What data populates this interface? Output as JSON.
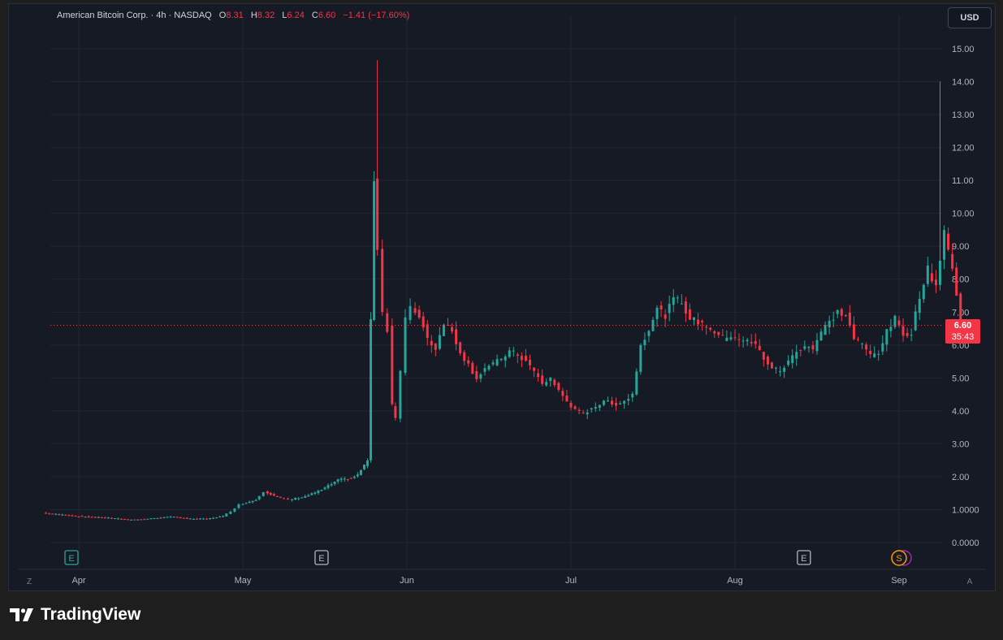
{
  "legend": {
    "symbol": "American Bitcoin Corp. · 4h · NASDAQ",
    "open_label": "O",
    "open_value": "8.31",
    "high_label": "H",
    "high_value": "8.32",
    "low_label": "L",
    "low_value": "6.24",
    "close_label": "C",
    "close_value": "6.60",
    "change": "−1.41 (−17.60%)"
  },
  "toolbar": {
    "currency": "USD"
  },
  "price_tag": {
    "price": "6.60",
    "countdown": "35:43"
  },
  "corner_labels": {
    "left": "Z",
    "right": "A"
  },
  "footer": {
    "brand": "TradingView"
  },
  "colors": {
    "up": "#26a69a",
    "down": "#f23645",
    "background": "#161a25",
    "grid": "#232632",
    "text": "#b2b5be"
  },
  "chart_data": {
    "type": "candlestick",
    "title": "American Bitcoin Corp. · 4h · NASDAQ",
    "ylim": [
      0,
      15
    ],
    "y_ticks": [
      "15.00",
      "14.00",
      "13.00",
      "12.00",
      "11.00",
      "10.00",
      "9.00",
      "8.00",
      "7.00",
      "6.00",
      "5.00",
      "4.00",
      "3.00",
      "2.00",
      "1.0000",
      "0.0000"
    ],
    "x_ticks": [
      "Apr",
      "May",
      "Jun",
      "Jul",
      "Aug",
      "Sep"
    ],
    "current_price": 6.6,
    "event_markers": [
      {
        "label": "E",
        "month_index": 0,
        "style": "green"
      },
      {
        "label": "E",
        "month_index": 1.48,
        "style": "grey"
      },
      {
        "label": "E",
        "month_index": 4.42,
        "style": "grey"
      },
      {
        "label": "S",
        "month_index": 5.0,
        "style": "orange"
      }
    ],
    "grid": true,
    "series": [
      {
        "note": "anchor closes of the price path, by month position (0 = Apr)",
        "points": [
          [
            -0.2,
            0.9
          ],
          [
            -0.1,
            0.85
          ],
          [
            0.0,
            0.8
          ],
          [
            0.2,
            0.75
          ],
          [
            0.3,
            0.7
          ],
          [
            0.4,
            0.7
          ],
          [
            0.5,
            0.75
          ],
          [
            0.6,
            0.78
          ],
          [
            0.7,
            0.72
          ],
          [
            0.8,
            0.72
          ],
          [
            0.9,
            0.8
          ],
          [
            0.95,
            0.95
          ],
          [
            1.0,
            1.15
          ],
          [
            1.1,
            1.3
          ],
          [
            1.15,
            1.55
          ],
          [
            1.25,
            1.35
          ],
          [
            1.3,
            1.3
          ],
          [
            1.4,
            1.4
          ],
          [
            1.5,
            1.6
          ],
          [
            1.6,
            1.9
          ],
          [
            1.68,
            1.95
          ],
          [
            1.72,
            2.05
          ],
          [
            1.78,
            2.5
          ],
          [
            1.82,
            11.0
          ],
          [
            1.85,
            9.0
          ],
          [
            1.88,
            7.0
          ],
          [
            1.91,
            6.5
          ],
          [
            1.93,
            4.2
          ],
          [
            1.96,
            3.8
          ],
          [
            1.99,
            5.2
          ],
          [
            2.02,
            6.8
          ],
          [
            2.05,
            7.1
          ],
          [
            2.1,
            6.9
          ],
          [
            2.15,
            6.2
          ],
          [
            2.2,
            5.9
          ],
          [
            2.25,
            6.7
          ],
          [
            2.3,
            6.4
          ],
          [
            2.35,
            5.8
          ],
          [
            2.4,
            5.4
          ],
          [
            2.45,
            5.0
          ],
          [
            2.5,
            5.3
          ],
          [
            2.55,
            5.4
          ],
          [
            2.6,
            5.6
          ],
          [
            2.65,
            5.8
          ],
          [
            2.7,
            5.7
          ],
          [
            2.75,
            5.5
          ],
          [
            2.8,
            5.2
          ],
          [
            2.85,
            4.8
          ],
          [
            2.9,
            5.0
          ],
          [
            2.95,
            4.6
          ],
          [
            3.0,
            4.3
          ],
          [
            3.05,
            4.0
          ],
          [
            3.1,
            3.9
          ],
          [
            3.15,
            4.1
          ],
          [
            3.2,
            4.2
          ],
          [
            3.25,
            4.3
          ],
          [
            3.3,
            4.2
          ],
          [
            3.35,
            4.3
          ],
          [
            3.4,
            4.5
          ],
          [
            3.45,
            6.0
          ],
          [
            3.5,
            6.5
          ],
          [
            3.55,
            7.1
          ],
          [
            3.6,
            6.9
          ],
          [
            3.65,
            7.4
          ],
          [
            3.7,
            7.3
          ],
          [
            3.75,
            6.8
          ],
          [
            3.8,
            6.7
          ],
          [
            3.85,
            6.6
          ],
          [
            3.9,
            6.4
          ],
          [
            3.95,
            6.2
          ],
          [
            4.0,
            6.3
          ],
          [
            4.05,
            6.2
          ],
          [
            4.1,
            6.1
          ],
          [
            4.15,
            6.0
          ],
          [
            4.2,
            5.6
          ],
          [
            4.25,
            5.3
          ],
          [
            4.3,
            5.2
          ],
          [
            4.35,
            5.5
          ],
          [
            4.4,
            5.8
          ],
          [
            4.45,
            6.0
          ],
          [
            4.5,
            5.9
          ],
          [
            4.55,
            6.4
          ],
          [
            4.6,
            6.7
          ],
          [
            4.65,
            7.0
          ],
          [
            4.7,
            6.9
          ],
          [
            4.75,
            6.2
          ],
          [
            4.8,
            6.0
          ],
          [
            4.85,
            5.7
          ],
          [
            4.9,
            5.8
          ],
          [
            4.95,
            6.4
          ],
          [
            5.0,
            6.8
          ],
          [
            5.05,
            6.3
          ],
          [
            5.1,
            6.4
          ],
          [
            5.15,
            7.5
          ],
          [
            5.2,
            8.3
          ],
          [
            5.25,
            7.8
          ],
          [
            5.3,
            9.5
          ],
          [
            5.35,
            8.3
          ],
          [
            5.4,
            6.6
          ]
        ]
      }
    ]
  }
}
